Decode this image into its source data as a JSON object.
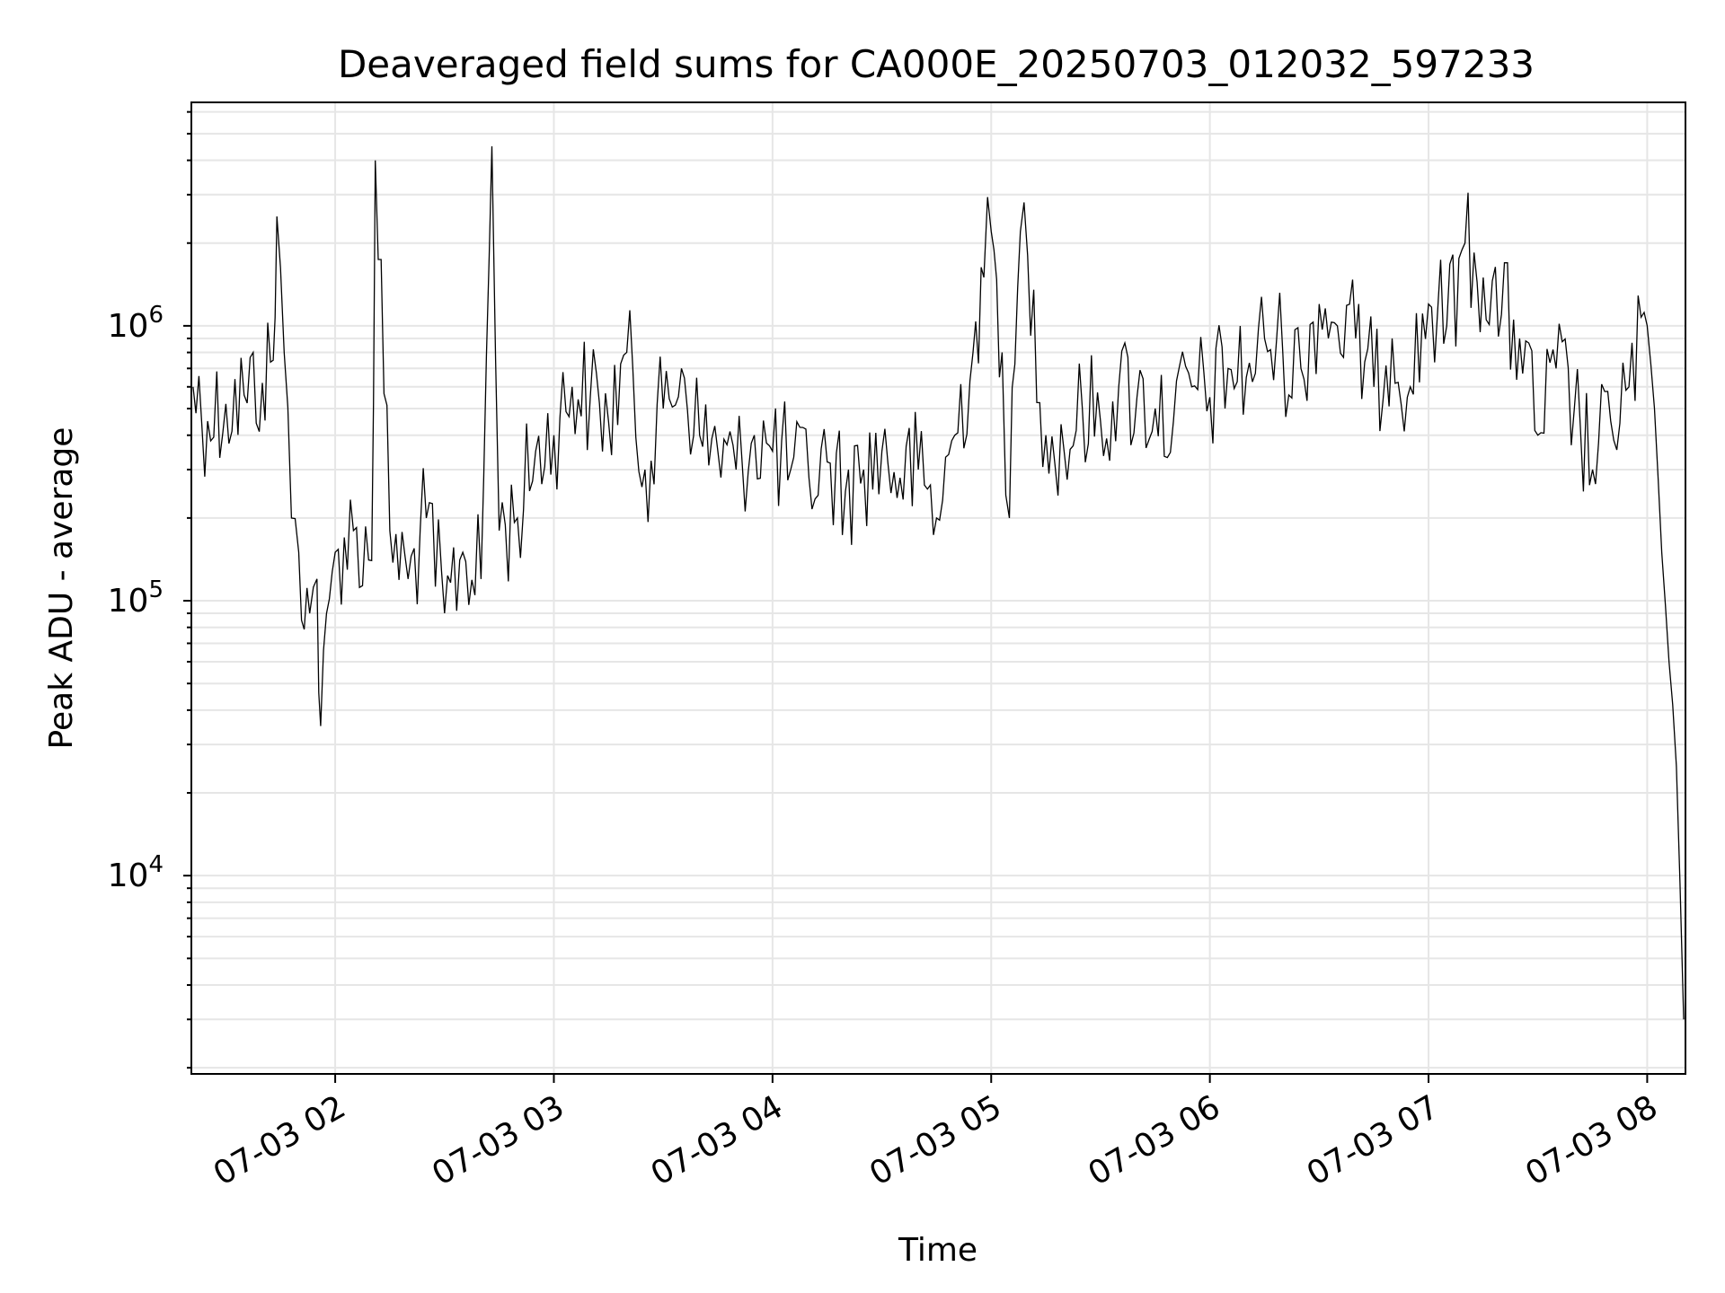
{
  "chart_data": {
    "type": "line",
    "title": "Deaveraged field sums for CA000E_20250703_012032_597233",
    "xlabel": "Time",
    "ylabel": "Peak ADU - average",
    "yscale": "log",
    "ylim": [
      1900,
      6500000
    ],
    "xlim": [
      "2025-07-03 01:20:32",
      "2025-07-03 08:10:30"
    ],
    "grid": true,
    "line_color": "#000000",
    "grid_color": "#e6e6e6",
    "x_ticks": [
      {
        "label": "07-03 02",
        "time": "2025-07-03 02:00"
      },
      {
        "label": "07-03 03",
        "time": "2025-07-03 03:00"
      },
      {
        "label": "07-03 04",
        "time": "2025-07-03 04:00"
      },
      {
        "label": "07-03 05",
        "time": "2025-07-03 05:00"
      },
      {
        "label": "07-03 06",
        "time": "2025-07-03 06:00"
      },
      {
        "label": "07-03 07",
        "time": "2025-07-03 07:00"
      },
      {
        "label": "07-03 08",
        "time": "2025-07-03 08:00"
      }
    ],
    "y_ticks": [
      {
        "base": "10",
        "exp": "4",
        "value": 10000
      },
      {
        "base": "10",
        "exp": "5",
        "value": 100000
      },
      {
        "base": "10",
        "exp": "6",
        "value": 1000000
      }
    ],
    "series": [
      {
        "x": [
          "2025-07-03 01:21",
          "2025-07-03 01:25",
          "2025-07-03 01:30",
          "2025-07-03 01:35",
          "2025-07-03 01:40",
          "2025-07-03 01:43",
          "2025-07-03 01:44",
          "2025-07-03 01:46",
          "2025-07-03 01:48",
          "2025-07-03 01:50",
          "2025-07-03 01:53",
          "2025-07-03 01:55",
          "2025-07-03 01:56",
          "2025-07-03 02:00",
          "2025-07-03 02:05",
          "2025-07-03 02:10",
          "2025-07-03 02:11",
          "2025-07-03 02:15",
          "2025-07-03 02:20",
          "2025-07-03 02:25",
          "2025-07-03 02:30",
          "2025-07-03 02:35",
          "2025-07-03 02:40",
          "2025-07-03 02:43",
          "2025-07-03 02:45",
          "2025-07-03 02:50",
          "2025-07-03 02:55",
          "2025-07-03 03:00",
          "2025-07-03 03:05",
          "2025-07-03 03:10",
          "2025-07-03 03:15",
          "2025-07-03 03:20",
          "2025-07-03 03:25",
          "2025-07-03 03:30",
          "2025-07-03 03:35",
          "2025-07-03 03:40",
          "2025-07-03 03:45",
          "2025-07-03 03:50",
          "2025-07-03 03:55",
          "2025-07-03 04:00",
          "2025-07-03 04:05",
          "2025-07-03 04:10",
          "2025-07-03 04:15",
          "2025-07-03 04:20",
          "2025-07-03 04:25",
          "2025-07-03 04:30",
          "2025-07-03 04:35",
          "2025-07-03 04:40",
          "2025-07-03 04:45",
          "2025-07-03 04:50",
          "2025-07-03 04:55",
          "2025-07-03 04:58",
          "2025-07-03 05:00",
          "2025-07-03 05:03",
          "2025-07-03 05:05",
          "2025-07-03 05:08",
          "2025-07-03 05:10",
          "2025-07-03 05:15",
          "2025-07-03 05:20",
          "2025-07-03 05:25",
          "2025-07-03 05:30",
          "2025-07-03 05:35",
          "2025-07-03 05:40",
          "2025-07-03 05:45",
          "2025-07-03 05:50",
          "2025-07-03 05:55",
          "2025-07-03 06:00",
          "2025-07-03 06:05",
          "2025-07-03 06:10",
          "2025-07-03 06:15",
          "2025-07-03 06:20",
          "2025-07-03 06:25",
          "2025-07-03 06:30",
          "2025-07-03 06:35",
          "2025-07-03 06:40",
          "2025-07-03 06:45",
          "2025-07-03 06:50",
          "2025-07-03 06:55",
          "2025-07-03 07:00",
          "2025-07-03 07:05",
          "2025-07-03 07:10",
          "2025-07-03 07:15",
          "2025-07-03 07:20",
          "2025-07-03 07:25",
          "2025-07-03 07:30",
          "2025-07-03 07:35",
          "2025-07-03 07:40",
          "2025-07-03 07:45",
          "2025-07-03 07:50",
          "2025-07-03 07:55",
          "2025-07-03 08:00",
          "2025-07-03 08:02",
          "2025-07-03 08:04",
          "2025-07-03 08:06",
          "2025-07-03 08:08",
          "2025-07-03 08:10"
        ],
        "values": [
          600000,
          450000,
          520000,
          560000,
          620000,
          750000,
          2500000,
          800000,
          200000,
          150000,
          90000,
          120000,
          35000,
          150000,
          180000,
          140000,
          4000000,
          180000,
          120000,
          200000,
          90000,
          150000,
          120000,
          4500000,
          180000,
          200000,
          350000,
          400000,
          600000,
          550000,
          450000,
          800000,
          300000,
          500000,
          700000,
          400000,
          350000,
          300000,
          400000,
          350000,
          300000,
          280000,
          320000,
          250000,
          300000,
          350000,
          280000,
          300000,
          200000,
          400000,
          800000,
          1500000,
          2200000,
          800000,
          200000,
          2200000,
          1800000,
          400000,
          350000,
          500000,
          450000,
          600000,
          550000,
          500000,
          450000,
          600000,
          550000,
          700000,
          650000,
          900000,
          800000,
          700000,
          1200000,
          1000000,
          900000,
          600000,
          900000,
          600000,
          1200000,
          1000000,
          2000000,
          1500000,
          1100000,
          900000,
          400000,
          700000,
          500000,
          300000,
          450000,
          600000,
          1000000,
          500000,
          150000,
          60000,
          25000,
          3000
        ]
      }
    ]
  }
}
